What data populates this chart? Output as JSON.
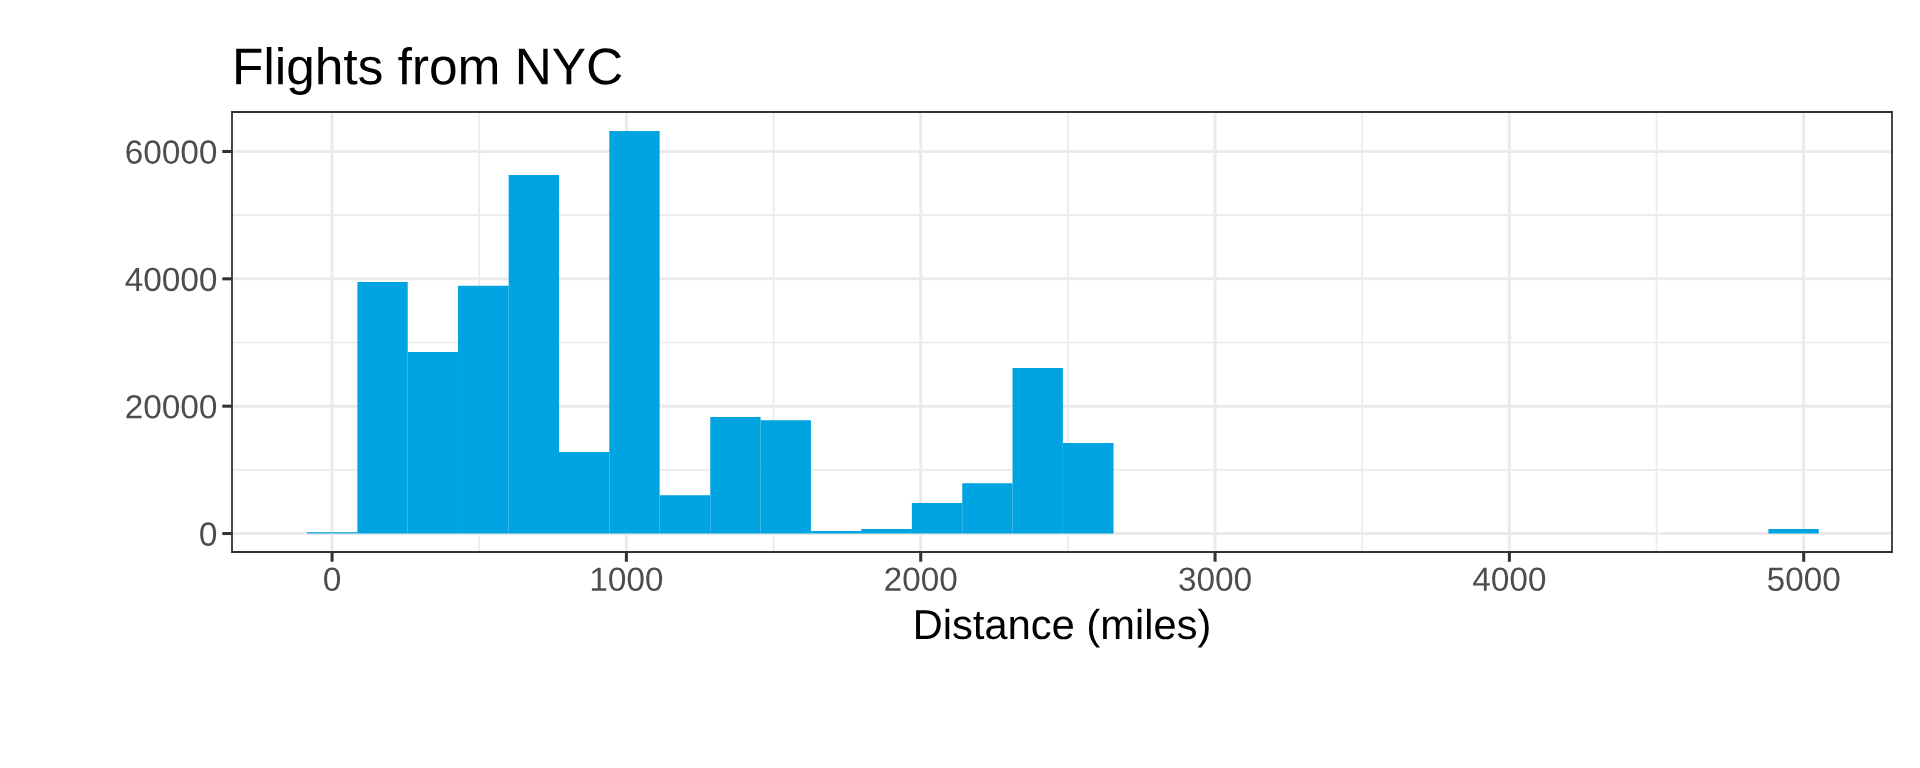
{
  "chart_data": {
    "type": "histogram",
    "title": "Flights from NYC",
    "xlabel": "Distance (miles)",
    "bins": [
      -85,
      86,
      257,
      428,
      600,
      771,
      942,
      1113,
      1285,
      1456,
      1627,
      1798,
      1970,
      2141,
      2312,
      2483,
      2655,
      2826,
      2997,
      3168,
      3339,
      3511,
      3682,
      3853,
      4024,
      4195,
      4367,
      4538,
      4709,
      4880,
      5051
    ],
    "values": [
      200,
      39500,
      28500,
      38900,
      56300,
      12800,
      63200,
      6000,
      18300,
      17800,
      400,
      700,
      4800,
      7900,
      26000,
      14200,
      0,
      0,
      0,
      0,
      0,
      0,
      0,
      0,
      0,
      0,
      0,
      0,
      0,
      700
    ],
    "color": "#00a4e1",
    "xlim": [
      -340,
      5300
    ],
    "xticks": [
      0,
      1000,
      2000,
      3000,
      4000,
      5000
    ],
    "ylim": [
      -2900,
      66200
    ],
    "yticks": [
      0,
      20000,
      40000,
      60000
    ],
    "grid": true
  }
}
